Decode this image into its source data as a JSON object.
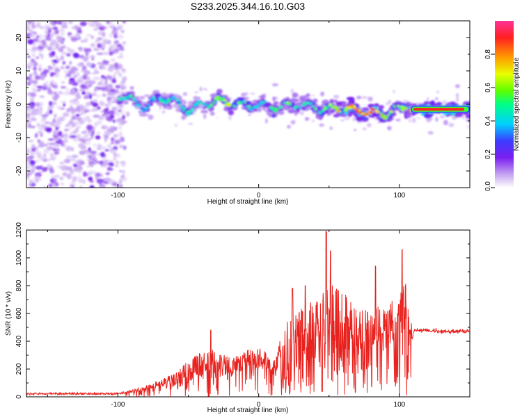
{
  "figure_title": "S233.2025.344.16.10.G03",
  "chart_data": [
    {
      "type": "heatmap",
      "title": "S233.2025.344.16.10.G03",
      "xlabel": "Height of straight line (km)",
      "ylabel": "Frequency (Hz)",
      "xlim": [
        -165,
        150
      ],
      "ylim": [
        -25,
        25
      ],
      "xticks": [
        "-100",
        "0",
        "100"
      ],
      "yticks": [
        "20",
        "10",
        "0",
        "-10",
        "-20"
      ],
      "colorbar": {
        "label": "Normalized spectral amplitude",
        "range": [
          0,
          1
        ],
        "ticks": [
          "0.0",
          "0.2",
          "0.4",
          "0.6",
          "0.8"
        ],
        "colors": [
          "#ffffff",
          "#c4a3f0",
          "#7a1ff0",
          "#3c3cff",
          "#00d0ff",
          "#00ff88",
          "#5dff00",
          "#e8ff00",
          "#ff9c00",
          "#ff2020",
          "#ff3399"
        ]
      },
      "ridge": {
        "x": [
          -100,
          -90,
          -80,
          -70,
          -60,
          -50,
          -40,
          -30,
          -20,
          -10,
          0,
          10,
          20,
          30,
          40,
          50,
          60,
          70,
          80,
          90,
          100,
          110,
          120,
          130,
          140,
          150
        ],
        "freq": [
          3,
          1,
          -1,
          2,
          1,
          -2,
          0,
          1,
          0.5,
          -0.5,
          0,
          -1,
          -0.5,
          0,
          -1,
          -1.5,
          -1,
          -2,
          -2.5,
          -3,
          -1,
          -1.5,
          -1.5,
          -1.5,
          -1.5,
          -1.5
        ],
        "amplitude": [
          0.45,
          0.5,
          0.4,
          0.5,
          0.4,
          0.5,
          0.45,
          0.6,
          0.7,
          0.5,
          0.45,
          0.5,
          0.6,
          0.5,
          0.55,
          0.6,
          0.8,
          0.85,
          0.9,
          0.7,
          0.6,
          0.95,
          0.95,
          0.95,
          0.9,
          0.9
        ]
      }
    },
    {
      "type": "line",
      "xlabel": "Height of straight line (km)",
      "ylabel": "SNR (10 * v/v)",
      "xlim": [
        -165,
        150
      ],
      "ylim": [
        0,
        1200
      ],
      "xticks": [
        "-100",
        "0",
        "100"
      ],
      "yticks": [
        "0",
        "200",
        "400",
        "600",
        "800",
        "1000",
        "1200"
      ],
      "series": [
        {
          "name": "SNR",
          "color": "#e8221e",
          "envelope_x": [
            -165,
            -100,
            -90,
            -80,
            -70,
            -60,
            -50,
            -40,
            -30,
            -20,
            -10,
            0,
            10,
            20,
            30,
            40,
            50,
            60,
            70,
            80,
            90,
            100,
            105,
            110,
            120,
            130,
            140,
            150
          ],
          "envelope_y": [
            30,
            30,
            50,
            80,
            130,
            170,
            260,
            330,
            340,
            280,
            330,
            380,
            260,
            540,
            650,
            720,
            820,
            760,
            640,
            660,
            640,
            780,
            820,
            480,
            480,
            470,
            470,
            470
          ],
          "floor_y": [
            15,
            15,
            25,
            30,
            40,
            60,
            80,
            100,
            130,
            140,
            170,
            200,
            150,
            150,
            150,
            140,
            150,
            140,
            150,
            200,
            250,
            200,
            150,
            440,
            440,
            440,
            430,
            430
          ],
          "peaks": [
            {
              "x": 48,
              "y": 1190
            },
            {
              "x": 51,
              "y": 1050
            },
            {
              "x": 102,
              "y": 1060
            },
            {
              "x": 83,
              "y": 940
            },
            {
              "x": 24,
              "y": 780
            },
            {
              "x": 33,
              "y": 800
            },
            {
              "x": -34,
              "y": 480
            }
          ]
        }
      ]
    }
  ]
}
